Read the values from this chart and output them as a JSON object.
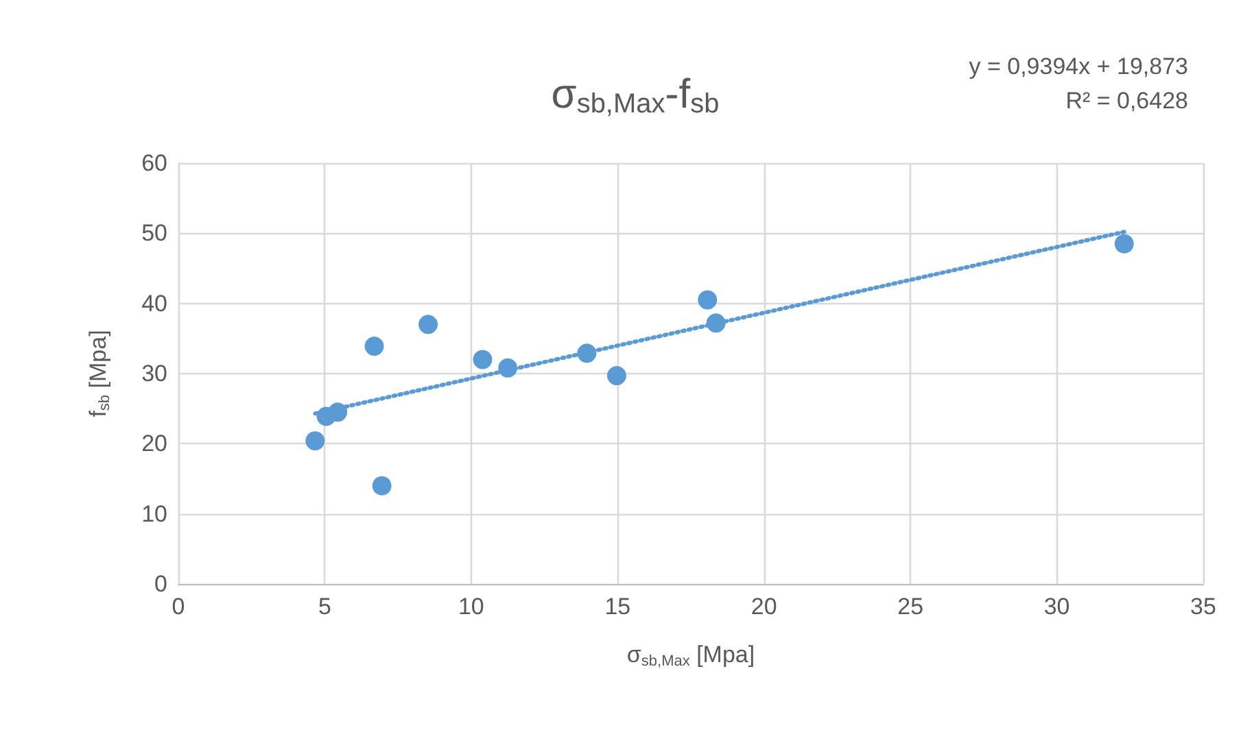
{
  "chart_data": {
    "type": "scatter",
    "title": "σ$_{sb,Max}$-f$_{sb}$",
    "xlabel": "σ$_{sb,Max}$ [Mpa]",
    "ylabel": "f$_{sb}$ [Mpa]",
    "annotations": [
      "y = 0,9394x + 19,873",
      "R² = 0,6428"
    ],
    "xlim": [
      0,
      35
    ],
    "xticks": [
      0,
      5,
      10,
      15,
      20,
      25,
      30,
      35
    ],
    "ylim": [
      0,
      60
    ],
    "yticks": [
      0,
      10,
      20,
      30,
      40,
      50,
      60
    ],
    "grid": true,
    "series": [
      {
        "marker": "circle",
        "color": "#5b9bd5",
        "x": [
          4.67,
          5.05,
          5.44,
          6.69,
          6.95,
          8.53,
          10.39,
          11.25,
          13.95,
          14.97,
          18.07,
          18.36,
          32.3
        ],
        "values": [
          20.4,
          23.9,
          24.5,
          33.9,
          14.0,
          37.0,
          32.0,
          30.8,
          32.9,
          29.7,
          40.5,
          37.2,
          48.5
        ]
      },
      {
        "type": "line",
        "marker": "none",
        "line_style": "dotted",
        "color": "#5b9bd5",
        "x": [
          4.67,
          32.3
        ],
        "values": [
          24.3,
          50.2
        ]
      }
    ]
  }
}
